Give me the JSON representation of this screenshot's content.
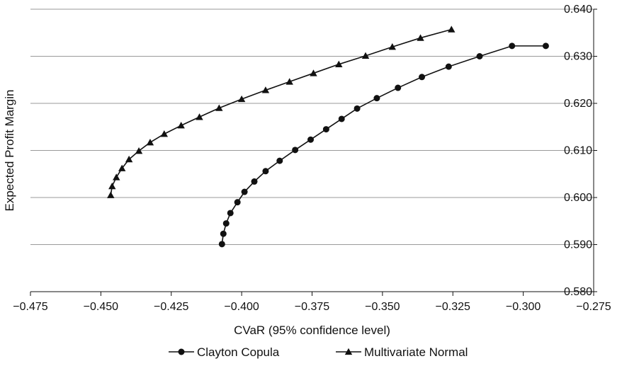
{
  "chart_data": {
    "type": "line",
    "xlabel": "CVaR (95% confidence level)",
    "ylabel": "Expected Profit Margin",
    "xlim": [
      -0.475,
      -0.275
    ],
    "ylim": [
      0.58,
      0.64
    ],
    "x_ticks": [
      "−0.475",
      "−0.450",
      "−0.425",
      "−0.400",
      "−0.375",
      "−0.350",
      "−0.325",
      "−0.300",
      "−0.275"
    ],
    "y_ticks": [
      "0.580",
      "0.590",
      "0.600",
      "0.610",
      "0.620",
      "0.630",
      "0.640"
    ],
    "y_axis_side": "right",
    "grid": "horizontal",
    "legend_position": "bottom",
    "line_color": "#111111",
    "grid_color": "#9a9a9a",
    "series": [
      {
        "name": "Clayton Copula",
        "marker": "circle",
        "points": [
          [
            -0.407,
            0.5901
          ],
          [
            -0.4065,
            0.5923
          ],
          [
            -0.4055,
            0.5945
          ],
          [
            -0.404,
            0.5967
          ],
          [
            -0.4015,
            0.599
          ],
          [
            -0.399,
            0.6012
          ],
          [
            -0.3955,
            0.6034
          ],
          [
            -0.3915,
            0.6056
          ],
          [
            -0.3865,
            0.6078
          ],
          [
            -0.381,
            0.6101
          ],
          [
            -0.3755,
            0.6123
          ],
          [
            -0.37,
            0.6145
          ],
          [
            -0.3645,
            0.6167
          ],
          [
            -0.359,
            0.6189
          ],
          [
            -0.352,
            0.6211
          ],
          [
            -0.3445,
            0.6233
          ],
          [
            -0.336,
            0.6256
          ],
          [
            -0.3265,
            0.6278
          ],
          [
            -0.3155,
            0.63
          ],
          [
            -0.304,
            0.6322
          ],
          [
            -0.292,
            0.6322
          ]
        ]
      },
      {
        "name": "Multivariate Normal",
        "marker": "triangle",
        "points": [
          [
            -0.4465,
            0.6005
          ],
          [
            -0.446,
            0.6024
          ],
          [
            -0.4445,
            0.6043
          ],
          [
            -0.4425,
            0.6062
          ],
          [
            -0.44,
            0.6081
          ],
          [
            -0.4365,
            0.6099
          ],
          [
            -0.4325,
            0.6117
          ],
          [
            -0.4275,
            0.6135
          ],
          [
            -0.4215,
            0.6153
          ],
          [
            -0.415,
            0.6171
          ],
          [
            -0.408,
            0.619
          ],
          [
            -0.4,
            0.6209
          ],
          [
            -0.3915,
            0.6228
          ],
          [
            -0.383,
            0.6246
          ],
          [
            -0.3745,
            0.6264
          ],
          [
            -0.3655,
            0.6283
          ],
          [
            -0.356,
            0.6301
          ],
          [
            -0.3465,
            0.632
          ],
          [
            -0.3365,
            0.6339
          ],
          [
            -0.3255,
            0.6357
          ]
        ]
      }
    ]
  }
}
